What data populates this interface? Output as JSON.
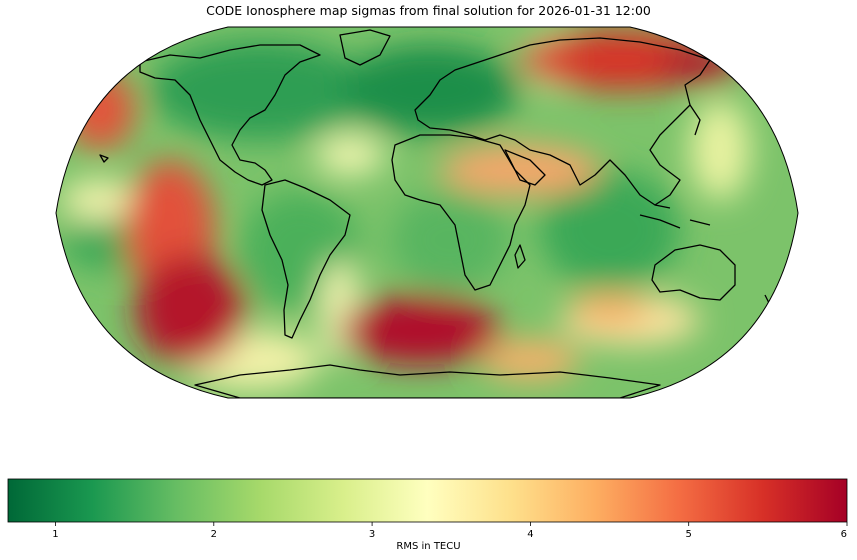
{
  "title": "CODE Ionosphere map sigmas from final solution for 2026-01-31 12:00",
  "colorbar": {
    "label": "RMS in TECU",
    "min": 0.7,
    "max": 6,
    "ticks": [
      "1",
      "2",
      "3",
      "4",
      "5",
      "6"
    ],
    "colormap": [
      "#006837",
      "#1a9850",
      "#66bd63",
      "#a6d96a",
      "#d9ef8b",
      "#ffffbf",
      "#fee08b",
      "#fdae61",
      "#f46d43",
      "#d73027",
      "#a50026"
    ]
  },
  "map": {
    "projection": "Robinson",
    "coastlines": true,
    "high_rms_regions": [
      {
        "lon": -120,
        "lat": -35,
        "value": 5.8
      },
      {
        "lon": 10,
        "lat": -50,
        "value": 5.9
      },
      {
        "lon": 140,
        "lat": 65,
        "value": 5.5
      },
      {
        "lon": -160,
        "lat": 45,
        "value": 5.0
      },
      {
        "lon": 60,
        "lat": 20,
        "value": 4.3
      }
    ]
  }
}
